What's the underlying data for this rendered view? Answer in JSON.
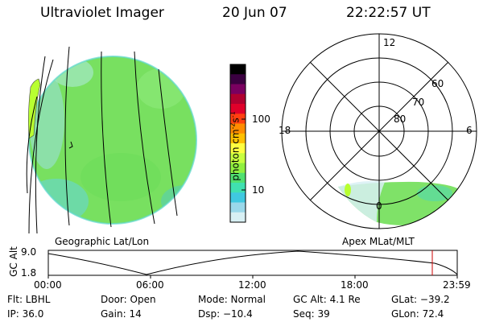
{
  "header": {
    "title": "Ultraviolet Imager",
    "date": "20 Jun 07",
    "time": "22:22:57 UT"
  },
  "colorbar": {
    "label": "photon cm",
    "label_sup1": "-2",
    "label_mid": "s",
    "label_sup2": "-1",
    "ticks": [
      "100",
      "10"
    ],
    "colors": [
      "#000000",
      "#3a0040",
      "#7a0060",
      "#b00030",
      "#e0002a",
      "#ff4010",
      "#ff8c00",
      "#ffc000",
      "#ffff40",
      "#c8ff40",
      "#90f040",
      "#50e070",
      "#40e0b0",
      "#40c8e0",
      "#9ad8ea",
      "#d8f0f4"
    ]
  },
  "left_panel": {
    "caption": "Geographic Lat/Lon",
    "disk_color": "#6ee060"
  },
  "right_panel": {
    "caption": "Apex MLat/MLT",
    "mlt_labels": [
      "12",
      "18",
      "6",
      "0"
    ],
    "mlat_labels": [
      "60",
      "70",
      "80"
    ]
  },
  "altitude_plot": {
    "ylabel": "GC Alt",
    "yticks": [
      "9.0",
      "1.8"
    ],
    "xticks": [
      "00:00",
      "06:00",
      "12:00",
      "18:00",
      "23:59"
    ],
    "current_marker_color": "#cc0000"
  },
  "footer": {
    "row1": [
      "Flt: LBHL",
      "Door: Open",
      "Mode: Normal",
      "GC Alt: 4.1 Re",
      "GLat: −39.2"
    ],
    "row2": [
      "IP: 36.0",
      "Gain: 14",
      "Dsp:  −10.4",
      "Seq: 39",
      "GLon:  72.4"
    ]
  }
}
